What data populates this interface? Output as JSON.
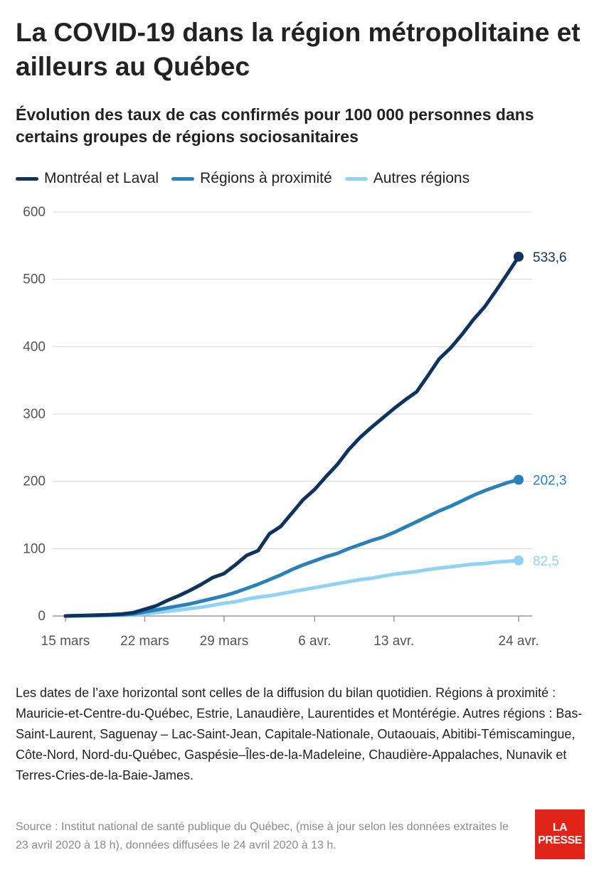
{
  "title": "La COVID-19 dans la région métropolitaine et ailleurs au Québec",
  "subtitle": "Évolution des taux de cas confirmés pour 100 000 personnes dans certains groupes de régions sociosanitaires",
  "notes": "Les dates de l’axe horizontal sont celles de la diffusion du bilan quotidien. Régions à proximité : Mauricie-et-Centre-du-Québec, Estrie, Lanaudière, Laurentides et Montérégie. Autres régions : Bas-Saint-Laurent, Saguenay – Lac-Saint-Jean, Capitale-Nationale, Outaouais, Abitibi-Témiscamingue, Côte-Nord, Nord-du-Québec, Gaspésie–Îles-de-la-Madeleine, Chaudière-Appalaches, Nunavik et Terres-Cries-de-la-Baie-James.",
  "source": "Source : Institut national de santé publique du Québec, (mise à jour selon les données extraites le 23 avril 2020 à 18 h), données diffusées le 24 avril 2020 à 13 h.",
  "logo": {
    "line1": "LA",
    "line2": "PRESSE",
    "color": "#e0241a"
  },
  "chart_data": {
    "type": "line",
    "title": "La COVID-19 dans la région métropolitaine et ailleurs au Québec",
    "subtitle": "Évolution des taux de cas confirmés pour 100 000 personnes dans certains groupes de régions sociosanitaires",
    "xlabel": "",
    "ylabel": "",
    "ylim": [
      0,
      600
    ],
    "yticks": [
      "0",
      "100",
      "200",
      "300",
      "400",
      "500",
      "600"
    ],
    "xticks": [
      {
        "x": "2020-03-15",
        "label": "15 mars"
      },
      {
        "x": "2020-03-22",
        "label": "22 mars"
      },
      {
        "x": "2020-03-29",
        "label": "29 mars"
      },
      {
        "x": "2020-04-06",
        "label": "6 avr."
      },
      {
        "x": "2020-04-13",
        "label": "13 avr."
      },
      {
        "x": "2020-04-24",
        "label": "24 avr."
      }
    ],
    "xlim": [
      "2020-03-15",
      "2020-04-24"
    ],
    "grid": true,
    "legend_position": "top",
    "x": [
      "2020-03-15",
      "2020-03-16",
      "2020-03-17",
      "2020-03-18",
      "2020-03-19",
      "2020-03-20",
      "2020-03-21",
      "2020-03-22",
      "2020-03-23",
      "2020-03-24",
      "2020-03-25",
      "2020-03-26",
      "2020-03-27",
      "2020-03-28",
      "2020-03-29",
      "2020-03-30",
      "2020-03-31",
      "2020-04-01",
      "2020-04-02",
      "2020-04-03",
      "2020-04-04",
      "2020-04-05",
      "2020-04-06",
      "2020-04-07",
      "2020-04-08",
      "2020-04-09",
      "2020-04-10",
      "2020-04-11",
      "2020-04-12",
      "2020-04-13",
      "2020-04-14",
      "2020-04-15",
      "2020-04-16",
      "2020-04-17",
      "2020-04-18",
      "2020-04-19",
      "2020-04-20",
      "2020-04-21",
      "2020-04-22",
      "2020-04-23",
      "2020-04-24"
    ],
    "series": [
      {
        "name": "Montréal et Laval",
        "color": "#0e335e",
        "values": [
          0,
          0.5,
          1,
          1.5,
          2,
          3,
          5,
          10,
          15,
          23,
          30,
          38,
          47,
          57,
          63,
          76,
          90,
          97,
          122,
          133,
          153,
          173,
          188,
          207,
          225,
          247,
          265,
          280,
          294,
          308,
          321,
          333,
          357,
          382,
          398,
          418,
          440,
          459,
          483,
          508,
          533.6
        ],
        "end_label": "533,6"
      },
      {
        "name": "Régions à proximité",
        "color": "#2a80b9",
        "values": [
          0,
          0.3,
          0.6,
          1,
          1.5,
          2,
          3,
          6,
          9,
          12,
          15,
          18,
          22,
          26,
          30,
          35,
          41,
          47,
          54,
          61,
          69,
          76,
          82,
          88,
          93,
          100,
          106,
          112,
          117,
          124,
          132,
          140,
          148,
          156,
          163,
          171,
          179,
          186,
          192,
          198,
          202.3
        ],
        "end_label": "202,3"
      },
      {
        "name": "Autres régions",
        "color": "#8fd3f4",
        "values": [
          0,
          0.2,
          0.4,
          0.6,
          0.8,
          1,
          1.5,
          3,
          5,
          7,
          9,
          11,
          13,
          16,
          19,
          21,
          25,
          28,
          30,
          33,
          36,
          39,
          42,
          45,
          48,
          51,
          54,
          56,
          59,
          62,
          64,
          66,
          69,
          71,
          73,
          75,
          77,
          78,
          80,
          81,
          82.5
        ],
        "end_label": "82,5"
      }
    ]
  }
}
